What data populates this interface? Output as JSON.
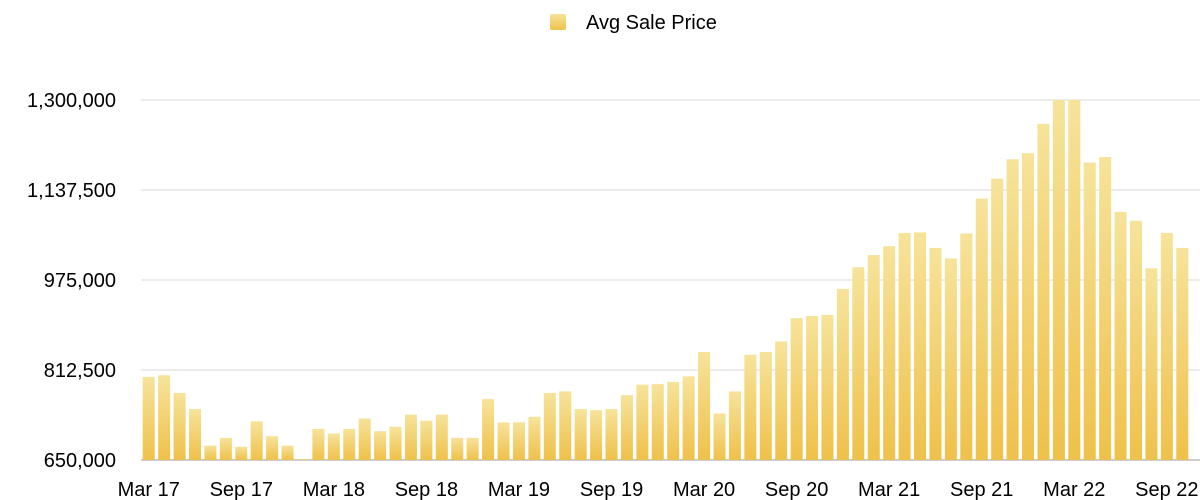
{
  "chart_data": {
    "type": "bar",
    "title": "",
    "xlabel": "",
    "ylabel": "",
    "ylim": [
      650000,
      1300000
    ],
    "yticks": [
      650000,
      812500,
      975000,
      1137500,
      1300000
    ],
    "ytick_labels": [
      "650,000",
      "812,500",
      "975,000",
      "1,137,500",
      "1,300,000"
    ],
    "xtick_labels": [
      "Mar 17",
      "Sep 17",
      "Mar 18",
      "Sep 18",
      "Mar 19",
      "Sep 19",
      "Mar 20",
      "Sep 20",
      "Mar 21",
      "Sep 21",
      "Mar 22",
      "Sep 22"
    ],
    "legend": {
      "position": "top-center"
    },
    "grid": true,
    "series": [
      {
        "name": "Avg Sale Price",
        "color_top": "#f6e39a",
        "color_bottom": "#efc14a",
        "values": [
          800000,
          803000,
          771000,
          742000,
          676000,
          690000,
          674000,
          720000,
          693000,
          676000,
          650000,
          706000,
          698000,
          706000,
          725000,
          702000,
          710000,
          732000,
          721000,
          732000,
          690000,
          690000,
          760000,
          718000,
          718000,
          728000,
          771000,
          774000,
          742000,
          740000,
          742000,
          767000,
          786000,
          787000,
          791000,
          801000,
          845000,
          734000,
          774000,
          840000,
          845000,
          864000,
          906000,
          910000,
          912000,
          959000,
          998000,
          1020000,
          1036000,
          1060000,
          1061000,
          1033000,
          1014000,
          1059000,
          1122000,
          1158000,
          1193000,
          1204000,
          1257000,
          1300000,
          1300000,
          1187000,
          1197000,
          1098000,
          1082000,
          996000,
          1060000,
          1033000
        ]
      }
    ]
  }
}
